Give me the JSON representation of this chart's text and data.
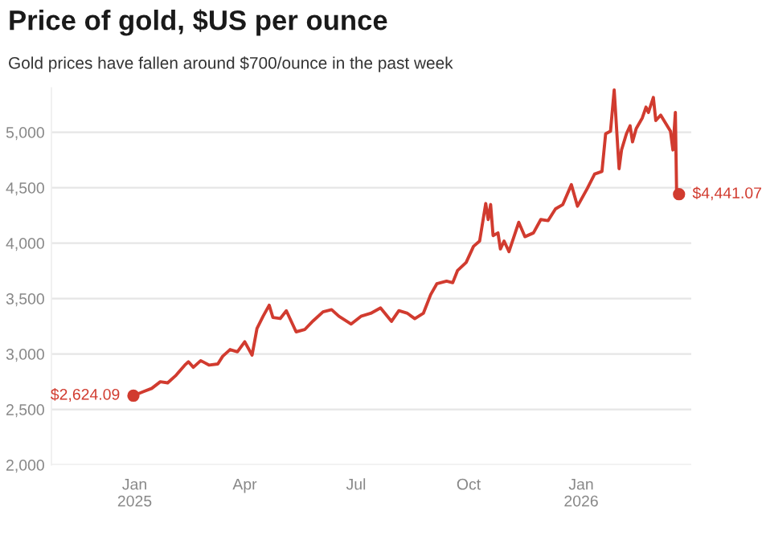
{
  "chart_data": {
    "type": "line",
    "title": "Price of gold, $US per ounce",
    "subtitle": "Gold prices have fallen around $700/ounce in the past week",
    "x": [
      "2024-12-31",
      "2025-01-08",
      "2025-01-15",
      "2025-01-22",
      "2025-01-28",
      "2025-02-04",
      "2025-02-11",
      "2025-02-14",
      "2025-02-18",
      "2025-02-24",
      "2025-03-03",
      "2025-03-10",
      "2025-03-14",
      "2025-03-20",
      "2025-03-26",
      "2025-04-01",
      "2025-04-07",
      "2025-04-11",
      "2025-04-16",
      "2025-04-21",
      "2025-04-24",
      "2025-04-30",
      "2025-05-05",
      "2025-05-13",
      "2025-05-20",
      "2025-05-27",
      "2025-06-04",
      "2025-06-11",
      "2025-06-17",
      "2025-06-27",
      "2025-07-05",
      "2025-07-13",
      "2025-07-21",
      "2025-07-30",
      "2025-08-05",
      "2025-08-12",
      "2025-08-18",
      "2025-08-25",
      "2025-08-31",
      "2025-09-05",
      "2025-09-13",
      "2025-09-18",
      "2025-09-22",
      "2025-09-29",
      "2025-10-05",
      "2025-10-10",
      "2025-10-15",
      "2025-10-17",
      "2025-10-19",
      "2025-10-21",
      "2025-10-25",
      "2025-10-27",
      "2025-10-30",
      "2025-11-03",
      "2025-11-11",
      "2025-11-16",
      "2025-11-23",
      "2025-11-29",
      "2025-12-05",
      "2025-12-11",
      "2025-12-17",
      "2025-12-24",
      "2025-12-29",
      "2026-01-06",
      "2026-01-12",
      "2026-01-18",
      "2026-01-21",
      "2026-01-25",
      "2026-01-28",
      "2026-02-01",
      "2026-02-03",
      "2026-02-07",
      "2026-02-10",
      "2026-02-12",
      "2026-02-15",
      "2026-02-20",
      "2026-02-23",
      "2026-02-25",
      "2026-03-01",
      "2026-03-03",
      "2026-03-07",
      "2026-03-11",
      "2026-03-15",
      "2026-03-17",
      "2026-03-19",
      "2026-03-20",
      "2026-03-22"
    ],
    "series": [
      {
        "color": "#d13b2f",
        "values": [
          2624.09,
          2660,
          2690,
          2750,
          2740,
          2810,
          2900,
          2930,
          2880,
          2940,
          2900,
          2910,
          2980,
          3040,
          3020,
          3110,
          2990,
          3230,
          3340,
          3440,
          3330,
          3320,
          3390,
          3200,
          3220,
          3300,
          3380,
          3400,
          3340,
          3270,
          3340,
          3367,
          3415,
          3295,
          3391,
          3367,
          3319,
          3367,
          3536,
          3633,
          3657,
          3643,
          3754,
          3826,
          3971,
          4019,
          4357,
          4213,
          4348,
          4068,
          4092,
          3947,
          4019,
          3923,
          4188,
          4058,
          4092,
          4213,
          4203,
          4309,
          4348,
          4527,
          4333,
          4493,
          4623,
          4647,
          4986,
          5010,
          5382,
          4671,
          4840,
          4986,
          5058,
          4913,
          5034,
          5130,
          5227,
          5179,
          5314,
          5106,
          5155,
          5082,
          5010,
          4840,
          5179,
          4478,
          4441.07
        ]
      }
    ],
    "annotations": [
      {
        "text": "$2,624.09",
        "x": "2024-12-31",
        "y": 2624.09
      },
      {
        "text": "$4,441.07",
        "x": "2026-03-22",
        "y": 4441.07
      }
    ],
    "xlim": [
      "2024-10-25",
      "2026-04-01"
    ],
    "xticks": [
      {
        "value": "2025-01-01",
        "label": "Jan\n2025"
      },
      {
        "value": "2025-04-01",
        "label": "Apr"
      },
      {
        "value": "2025-07-01",
        "label": "Jul"
      },
      {
        "value": "2025-10-01",
        "label": "Oct"
      },
      {
        "value": "2026-01-01",
        "label": "Jan\n2026"
      }
    ],
    "ylim": [
      2000,
      5400
    ],
    "yticks": [
      {
        "value": 2000,
        "label": "2,000"
      },
      {
        "value": 2500,
        "label": "2,500"
      },
      {
        "value": 3000,
        "label": "3,000"
      },
      {
        "value": 3500,
        "label": "3,500"
      },
      {
        "value": 4000,
        "label": "4,000"
      },
      {
        "value": 4500,
        "label": "4,500"
      },
      {
        "value": 5000,
        "label": "5,000"
      }
    ],
    "grid": "y",
    "legend": false,
    "marker": "none",
    "line_style": "solid"
  }
}
